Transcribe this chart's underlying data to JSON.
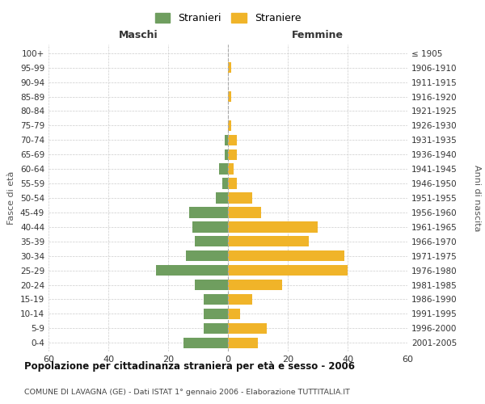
{
  "age_groups": [
    "0-4",
    "5-9",
    "10-14",
    "15-19",
    "20-24",
    "25-29",
    "30-34",
    "35-39",
    "40-44",
    "45-49",
    "50-54",
    "55-59",
    "60-64",
    "65-69",
    "70-74",
    "75-79",
    "80-84",
    "85-89",
    "90-94",
    "95-99",
    "100+"
  ],
  "birth_years": [
    "2001-2005",
    "1996-2000",
    "1991-1995",
    "1986-1990",
    "1981-1985",
    "1976-1980",
    "1971-1975",
    "1966-1970",
    "1961-1965",
    "1956-1960",
    "1951-1955",
    "1946-1950",
    "1941-1945",
    "1936-1940",
    "1931-1935",
    "1926-1930",
    "1921-1925",
    "1916-1920",
    "1911-1915",
    "1906-1910",
    "≤ 1905"
  ],
  "males": [
    15,
    8,
    8,
    8,
    11,
    24,
    14,
    11,
    12,
    13,
    4,
    2,
    3,
    1,
    1,
    0,
    0,
    0,
    0,
    0,
    0
  ],
  "females": [
    10,
    13,
    4,
    8,
    18,
    40,
    39,
    27,
    30,
    11,
    8,
    3,
    2,
    3,
    3,
    1,
    0,
    1,
    0,
    1,
    0
  ],
  "male_color": "#6f9e5f",
  "female_color": "#f0b429",
  "background_color": "#ffffff",
  "grid_color": "#cccccc",
  "title": "Popolazione per cittadinanza straniera per età e sesso - 2006",
  "subtitle": "COMUNE DI LAVAGNA (GE) - Dati ISTAT 1° gennaio 2006 - Elaborazione TUTTITALIA.IT",
  "xlabel_left": "Maschi",
  "xlabel_right": "Femmine",
  "ylabel_left": "Fasce di età",
  "ylabel_right": "Anni di nascita",
  "legend_male": "Stranieri",
  "legend_female": "Straniere",
  "xlim": 60
}
